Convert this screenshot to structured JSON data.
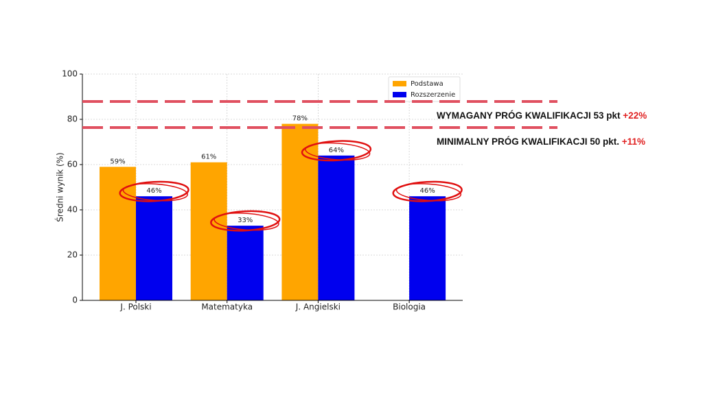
{
  "chart_data": {
    "type": "bar",
    "ylabel": "Średni wynik (%)",
    "categories": [
      "J. Polski",
      "Matematyka",
      "J. Angielski",
      "Biologia"
    ],
    "series": [
      {
        "name": "Podstawa",
        "color": "#ffa500",
        "values": [
          59,
          61,
          78,
          null
        ],
        "value_labels": [
          "59%",
          "61%",
          "78%",
          null
        ]
      },
      {
        "name": "Rozszerzenie",
        "color": "#0000ee",
        "values": [
          46,
          33,
          64,
          46
        ],
        "value_labels": [
          "46%",
          "33%",
          "64%",
          "46%"
        ]
      }
    ],
    "ylim": [
      0,
      100
    ],
    "yticks": [
      0,
      20,
      40,
      60,
      80,
      100
    ],
    "grid": true,
    "legend": "upper right",
    "annotations": [
      {
        "text": "WYMAGANY PRÓG KWALIFIKACJI 53 pkt",
        "highlight": "+22%"
      },
      {
        "text": "MINIMALNY PRÓG KWALIFIKACJI 50 pkt.",
        "highlight": "+11%"
      }
    ]
  }
}
